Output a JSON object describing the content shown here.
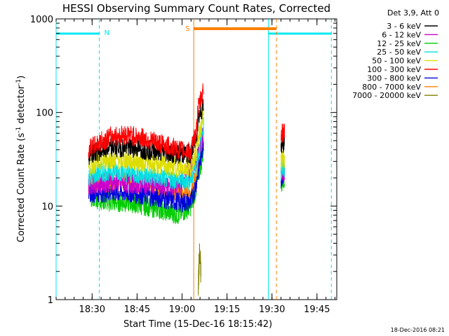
{
  "chart_data": {
    "type": "line",
    "title": "HESSI Observing Summary Count Rates, Corrected",
    "xlabel": "Start Time (15-Dec-16 18:15:42)",
    "ylabel_main": "Corrected Count Rate (s",
    "ylabel_sup1": "-1",
    "ylabel_mid": " detector",
    "ylabel_sup2": "-1",
    "ylabel_end": ")",
    "yscale": "log",
    "ylim": [
      1,
      1000
    ],
    "xlim_minutes": [
      18.3,
      19.86
    ],
    "x_ticks": [
      {
        "label": "18:30",
        "minute": 18.5
      },
      {
        "label": "18:45",
        "minute": 18.75
      },
      {
        "label": "19:00",
        "minute": 19.0
      },
      {
        "label": "19:15",
        "minute": 19.25
      },
      {
        "label": "19:30",
        "minute": 19.5
      },
      {
        "label": "19:45",
        "minute": 19.75
      }
    ],
    "y_ticks": [
      {
        "label": "1",
        "value": 1
      },
      {
        "label": "10",
        "value": 10
      },
      {
        "label": "100",
        "value": 100
      },
      {
        "label": "1000",
        "value": 1000
      }
    ],
    "legend_header": "Det 3,9, Att 0",
    "legend_position": "right",
    "series": [
      {
        "name": "3 - 6 keV",
        "color": "#000000",
        "x": [
          18.48,
          18.52,
          18.6,
          18.7,
          18.8,
          18.9,
          18.98,
          19.05,
          19.08,
          19.09,
          19.12,
          19.55,
          19.57
        ],
        "y": [
          35,
          38,
          42,
          43,
          40,
          38,
          36,
          36,
          55,
          90,
          120,
          45,
          48
        ]
      },
      {
        "name": "6 - 12 keV",
        "color": "#cc00cc",
        "x": [
          18.48,
          18.6,
          18.8,
          18.98,
          19.08,
          19.12,
          19.55,
          19.57
        ],
        "y": [
          17,
          18,
          17,
          16,
          30,
          60,
          22,
          24
        ]
      },
      {
        "name": "12 - 25 keV",
        "color": "#00cc00",
        "x": [
          18.48,
          18.52,
          18.6,
          18.7,
          18.8,
          18.9,
          18.98,
          19.05,
          19.08,
          19.12,
          19.55,
          19.57
        ],
        "y": [
          13,
          12,
          11,
          11,
          10,
          9,
          8,
          10,
          16,
          40,
          18,
          20
        ]
      },
      {
        "name": "25 - 50 keV",
        "color": "#00e0e0",
        "x": [
          18.48,
          18.52,
          18.6,
          18.7,
          18.8,
          18.9,
          18.98,
          19.05,
          19.08,
          19.12,
          19.55,
          19.57
        ],
        "y": [
          20,
          22,
          24,
          23,
          21,
          20,
          19,
          19,
          28,
          70,
          24,
          26
        ]
      },
      {
        "name": "50 - 100 keV",
        "color": "#dddd00",
        "x": [
          18.48,
          18.52,
          18.6,
          18.7,
          18.8,
          18.9,
          18.98,
          19.05,
          19.08,
          19.12,
          19.55,
          19.57
        ],
        "y": [
          26,
          29,
          32,
          31,
          29,
          27,
          26,
          26,
          40,
          100,
          30,
          32
        ]
      },
      {
        "name": "100 - 300 keV",
        "color": "#ff0000",
        "x": [
          18.48,
          18.52,
          18.6,
          18.7,
          18.8,
          18.9,
          18.98,
          19.05,
          19.08,
          19.09,
          19.12,
          19.55,
          19.57
        ],
        "y": [
          40,
          45,
          55,
          58,
          52,
          45,
          40,
          38,
          65,
          110,
          180,
          58,
          62
        ]
      },
      {
        "name": "300 - 800 keV",
        "color": "#0000dd",
        "x": [
          18.48,
          18.52,
          18.6,
          18.7,
          18.8,
          18.9,
          18.98,
          19.05,
          19.08,
          19.12,
          19.55,
          19.57
        ],
        "y": [
          14,
          14,
          14,
          14,
          13,
          12,
          11,
          11,
          18,
          50,
          20,
          22
        ]
      },
      {
        "name": "800 - 7000 keV",
        "color": "#ff8000",
        "x": [
          18.48,
          18.52,
          18.6,
          18.7,
          18.8,
          18.9,
          18.98,
          19.05,
          19.08,
          19.12,
          19.55,
          19.57
        ],
        "y": [
          16,
          17,
          18,
          18,
          16,
          15,
          14,
          14,
          20,
          55,
          22,
          24
        ]
      },
      {
        "name": "7000 - 20000 keV",
        "color": "#808000",
        "x": [
          19.09,
          19.095,
          19.1,
          19.105
        ],
        "y": [
          1.5,
          2.5,
          3,
          1.6
        ]
      }
    ],
    "intervals": [
      {
        "label": "",
        "x_start": 18.3,
        "x_end": 18.54,
        "color": "#00e8f0"
      },
      {
        "label": "N",
        "x_start": 18.54,
        "x_end": 18.54,
        "color": "#00e8f0"
      },
      {
        "label": "",
        "x_start": 19.48,
        "x_end": 19.83,
        "color": "#00e8f0"
      },
      {
        "label": "S",
        "x_start": 19.065,
        "x_end": 19.525,
        "color": "#ff8000"
      }
    ]
  },
  "footer": {
    "timestamp": "18-Dec-2016 08:21"
  }
}
